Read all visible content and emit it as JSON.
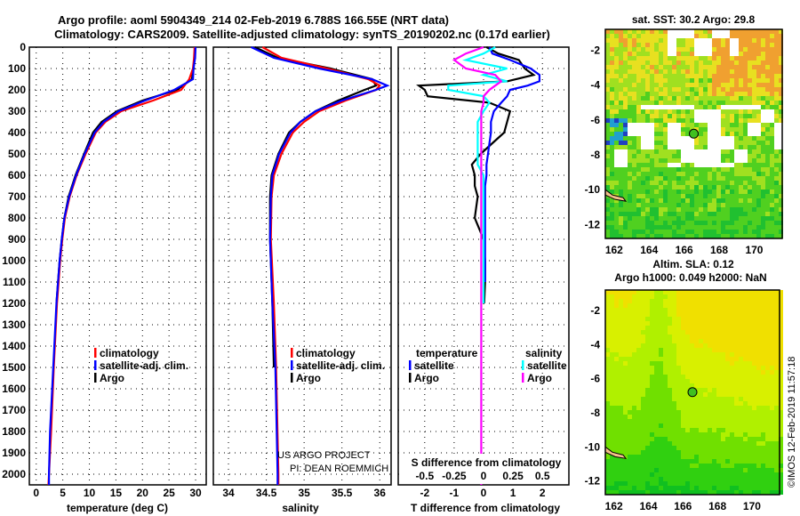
{
  "titles": {
    "line1": "Argo profile: aoml 5904349_214 02-Feb-2019 6.788S 166.55E (NRT data)",
    "line2": "Climatology: CARS2009. Satellite-adjusted climatology: synTS_20190202.nc (0.17d earlier)"
  },
  "credit": {
    "project": "US ARGO PROJECT",
    "pi": "PI: DEAN ROEMMICH",
    "stamp": "©IMOS 12-Feb-2019 11:57:18"
  },
  "colors": {
    "climatology": "#ff0000",
    "satellite": "#0000ff",
    "argo": "#000000",
    "sal_satellite": "#00ffff",
    "sal_argo": "#ff00ff"
  },
  "chart_data": [
    {
      "type": "line",
      "id": "temperature",
      "xlabel": "temperature (deg C)",
      "ylabel": "",
      "xlim": [
        -1.3,
        32
      ],
      "ylim": [
        2050,
        0
      ],
      "grid": true,
      "xticks": [
        "0",
        "5",
        "10",
        "15",
        "20",
        "25",
        "30"
      ],
      "yticks": [
        "0",
        "100",
        "200",
        "300",
        "400",
        "500",
        "600",
        "700",
        "800",
        "900",
        "1000",
        "1100",
        "1200",
        "1300",
        "1400",
        "1500",
        "1600",
        "1700",
        "1800",
        "1900",
        "2000"
      ],
      "legend": [
        "climatology",
        "satellite-adj. clim.",
        "Argo"
      ],
      "legend_position": "bottom-right",
      "depth": [
        0,
        50,
        100,
        150,
        200,
        250,
        300,
        350,
        400,
        500,
        600,
        700,
        800,
        900,
        1000,
        1200,
        1500,
        1800,
        2000,
        2050
      ],
      "series": [
        {
          "name": "climatology",
          "values": [
            29.8,
            29.7,
            29.5,
            28.8,
            27.3,
            22,
            16,
            13,
            11.2,
            9.3,
            7.6,
            6.3,
            5.4,
            4.9,
            4.5,
            3.9,
            3.3,
            2.8,
            2.4,
            2.3
          ]
        },
        {
          "name": "satellite-adj. clim.",
          "values": [
            30,
            29.9,
            29.6,
            29.5,
            26,
            20.5,
            15.5,
            12.7,
            11,
            9.1,
            7.5,
            6.2,
            5.3,
            4.8,
            4.4,
            3.8,
            3.2,
            2.6,
            2.4,
            2.4
          ]
        },
        {
          "name": "Argo",
          "values": [
            29.9,
            29.8,
            29.6,
            29.3,
            26.5,
            20,
            15.2,
            12.3,
            10.7,
            9.0,
            7.4,
            6.1,
            5.3,
            4.8,
            4.4,
            3.8,
            null,
            null,
            null,
            null
          ]
        }
      ]
    },
    {
      "type": "line",
      "id": "salinity",
      "xlabel": "salinity",
      "xlim": [
        33.8,
        36.15
      ],
      "ylim": [
        2050,
        0
      ],
      "grid": true,
      "xticks": [
        "34",
        "34.5",
        "35",
        "35.5",
        "36"
      ],
      "legend": [
        "climatology",
        "satellite-adj. clim.",
        "Argo"
      ],
      "legend_position": "bottom-right",
      "depth": [
        0,
        50,
        100,
        150,
        180,
        200,
        250,
        300,
        350,
        400,
        500,
        600,
        700,
        900,
        1200,
        1500,
        2000,
        2050
      ],
      "series": [
        {
          "name": "climatology",
          "values": [
            34.45,
            34.7,
            35.3,
            35.85,
            36.0,
            35.95,
            35.55,
            35.2,
            35.0,
            34.85,
            34.7,
            34.6,
            34.57,
            34.56,
            34.6,
            34.63,
            34.66,
            34.66
          ]
        },
        {
          "name": "satellite-adj. clim.",
          "values": [
            34.3,
            34.6,
            35.2,
            35.9,
            36.1,
            35.95,
            35.5,
            35.15,
            34.95,
            34.82,
            34.67,
            34.58,
            34.56,
            34.55,
            34.58,
            34.62,
            34.65,
            34.65
          ]
        },
        {
          "name": "Argo",
          "values": [
            34.35,
            34.65,
            35.35,
            35.9,
            35.95,
            35.8,
            35.45,
            35.15,
            34.95,
            34.8,
            34.66,
            34.57,
            34.55,
            34.55,
            34.58,
            34.6,
            null,
            null
          ]
        }
      ]
    },
    {
      "type": "line",
      "id": "difference",
      "xlabel": "T difference from climatology",
      "x2label": "S difference from climatology",
      "xlim": [
        -2.9,
        2.9
      ],
      "x2lim": [
        -0.725,
        0.725
      ],
      "ylim": [
        2050,
        0
      ],
      "grid": true,
      "xticks": [
        "-2",
        "-1",
        "0",
        "1",
        "2"
      ],
      "x2ticks": [
        "-0.5",
        "-0.25",
        "0",
        "0.25",
        "0.5"
      ],
      "legend_temperature": {
        "heading": "temperature",
        "items": [
          "satellite",
          "Argo"
        ]
      },
      "legend_salinity": {
        "heading": "salinity",
        "items": [
          "satellite",
          "Argo"
        ]
      },
      "depth": [
        0,
        30,
        60,
        100,
        130,
        160,
        180,
        200,
        230,
        260,
        300,
        350,
        400,
        450,
        500,
        550,
        600,
        650,
        700,
        800,
        900,
        1000,
        1100,
        1200,
        2050
      ],
      "series": [
        {
          "name": "temperature satellite",
          "values": [
            0.2,
            0.3,
            0.9,
            1.6,
            1.9,
            1.9,
            1.5,
            0.9,
            0.8,
            0.6,
            0.35,
            0.25,
            0.25,
            0.2,
            0.15,
            0.1,
            0.1,
            0.05,
            0.05,
            0.05,
            0.05,
            0.05,
            0.05,
            null,
            null
          ]
        },
        {
          "name": "temperature Argo",
          "values": [
            0.1,
            0.5,
            1.2,
            1.4,
            1.7,
            0.8,
            -2.2,
            -2.0,
            -1.9,
            0.2,
            0.9,
            0.8,
            0.7,
            0.3,
            -0.1,
            -0.4,
            -0.3,
            -0.3,
            -0.2,
            -0.3,
            0,
            0.05,
            0.05,
            0.02,
            null
          ]
        },
        {
          "name": "salinity satellite",
          "values": [
            0.0,
            -0.15,
            -0.25,
            -0.15,
            0.1,
            0.15,
            0.1,
            0.05,
            0.0,
            0,
            -0.02,
            -0.02,
            -0.02,
            -0.02,
            -0.02,
            -0.02,
            -0.02,
            -0.02,
            -0.02,
            -0.02,
            -0.02,
            -0.02,
            -0.02,
            -0.02,
            -0.02
          ]
        },
        {
          "name": "salinity Argo",
          "values": [
            0.1,
            0.0,
            -0.15,
            0.2,
            0.0,
            0.2,
            -0.3,
            -0.3,
            0,
            0.05,
            0,
            -0.05,
            -0.05,
            -0.05,
            -0.05,
            -0.05,
            0,
            0,
            0,
            0,
            0,
            0,
            0,
            0,
            null
          ]
        }
      ]
    },
    {
      "type": "heatmap",
      "id": "sst-map",
      "title": "sat. SST: 30.2 Argo: 29.8",
      "xlim": [
        161.5,
        171.6
      ],
      "ylim": [
        -12.8,
        -0.8
      ],
      "xticks": [
        "162",
        "164",
        "166",
        "168",
        "170"
      ],
      "yticks": [
        "-2",
        "-4",
        "-6",
        "-8",
        "-10",
        "-12"
      ],
      "argo_position": {
        "lon": 166.55,
        "lat": -6.788
      }
    },
    {
      "type": "heatmap",
      "id": "sla-map",
      "title": "Altim. SLA: 0.12",
      "subtitle": "Argo h1000: 0.049 h2000: NaN",
      "xlim": [
        161.5,
        171.6
      ],
      "ylim": [
        -12.8,
        -0.8
      ],
      "xticks": [
        "162",
        "164",
        "166",
        "168",
        "170"
      ],
      "yticks": [
        "-2",
        "-4",
        "-6",
        "-8",
        "-10",
        "-12"
      ],
      "argo_position": {
        "lon": 166.55,
        "lat": -6.788
      }
    }
  ]
}
